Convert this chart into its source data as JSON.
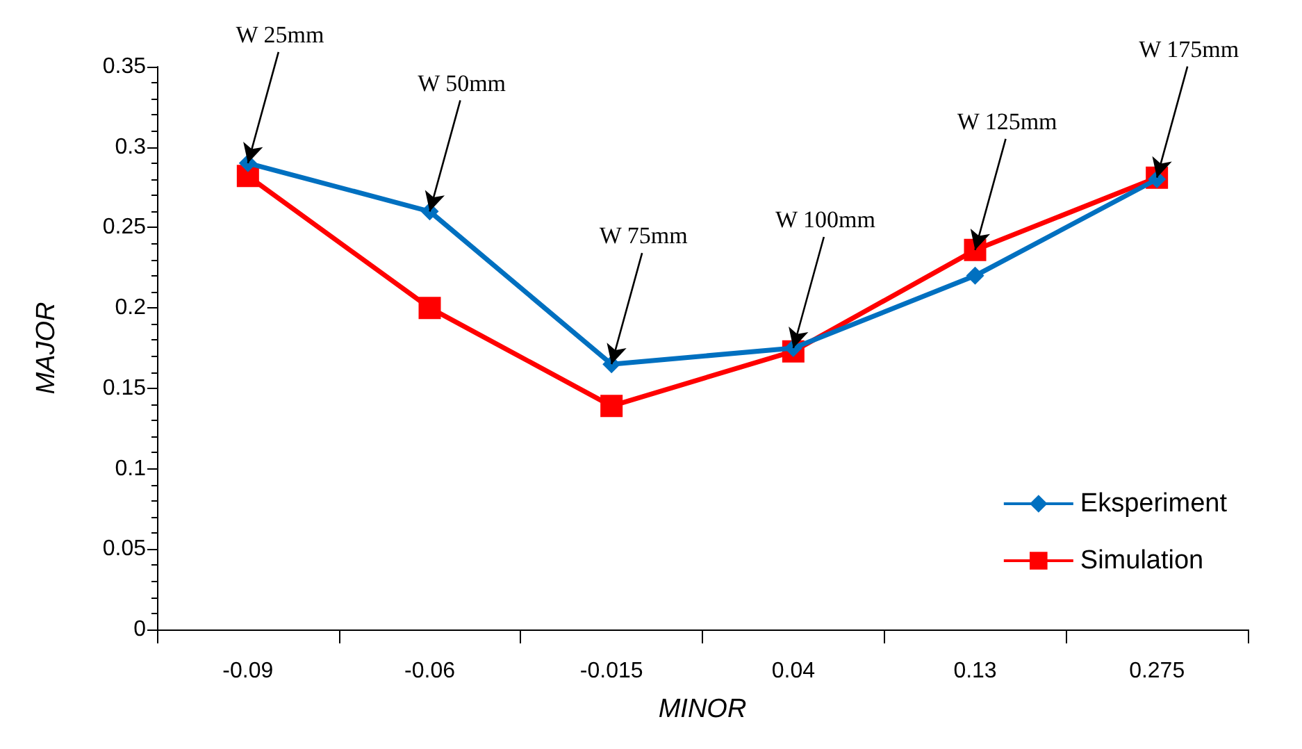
{
  "chart_data": {
    "type": "line",
    "xlabel": "MINOR",
    "ylabel": "MAJOR",
    "categories": [
      "-0.09",
      "-0.06",
      "-0.015",
      "0.04",
      "0.13",
      "0.275"
    ],
    "series": [
      {
        "name": "Eksperiment",
        "color": "#0070c0",
        "marker": "diamond",
        "values": [
          0.29,
          0.26,
          0.165,
          0.175,
          0.22,
          0.28
        ]
      },
      {
        "name": "Simulation",
        "color": "#ff0000",
        "marker": "square",
        "values": [
          0.282,
          0.2,
          0.139,
          0.173,
          0.236,
          0.281
        ]
      }
    ],
    "ylim": [
      0,
      0.35
    ],
    "yticks": [
      0,
      0.05,
      0.1,
      0.15,
      0.2,
      0.25,
      0.3,
      0.35
    ],
    "grid": false,
    "legend": "bottom right",
    "annotations": [
      {
        "text": "W 25mm",
        "x": "-0.09",
        "y": 0.29
      },
      {
        "text": "W 50mm",
        "x": "-0.06",
        "y": 0.26
      },
      {
        "text": "W 75mm",
        "x": "-0.015",
        "y": 0.165
      },
      {
        "text": "W 100mm",
        "x": "0.04",
        "y": 0.175
      },
      {
        "text": "W 125mm",
        "x": "0.13",
        "y": 0.236
      },
      {
        "text": "W 175mm",
        "x": "0.275",
        "y": 0.281
      }
    ]
  }
}
